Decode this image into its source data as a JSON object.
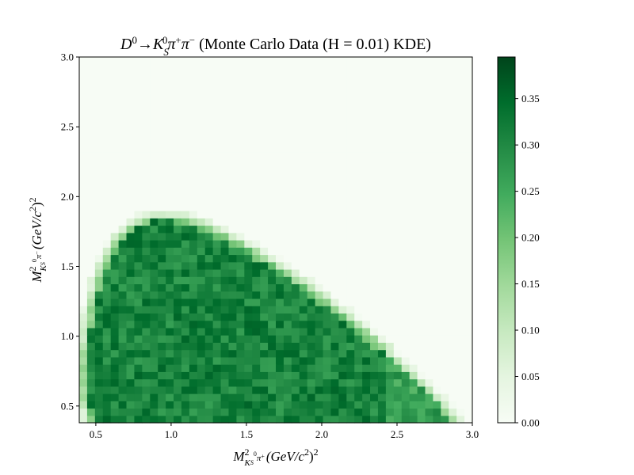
{
  "chart_data": {
    "type": "heatmap",
    "title_parts": {
      "math_left": "D",
      "sup_0a": "0",
      "arrow": "→",
      "k": "K",
      "sub_s_title": "S",
      "sup_0b": "0",
      "pi_plus": "π",
      "sup_plus": "+",
      "pi_minus": "π",
      "sup_minus": "−",
      "plain": " (Monte Carlo Data (H = 0.01) KDE)"
    },
    "xlabel_parts": {
      "m": "M",
      "sup2": "2",
      "sub": "K",
      "sub_s": "S",
      "sub_0": "0",
      "sub_pi": "π",
      "sub_sign": "+",
      "unit": "(GeV/c",
      "unit_sup": "2",
      "unit_close": ")",
      "unit_sup2": "2"
    },
    "ylabel_parts": {
      "m": "M",
      "sup2": "2",
      "sub": "K",
      "sub_s": "S",
      "sub_0": "0",
      "sub_pi": "π",
      "sub_sign": "−",
      "unit": "(GeV/c",
      "unit_sup": "2",
      "unit_close": ")",
      "unit_sup2": "2"
    },
    "xlim": [
      0.39,
      3.0
    ],
    "ylim": [
      0.38,
      3.0
    ],
    "x_ticks": [
      0.5,
      1.0,
      1.5,
      2.0,
      2.5,
      3.0
    ],
    "x_tick_labels": [
      "0.5",
      "1.0",
      "1.5",
      "2.0",
      "2.5",
      "3.0"
    ],
    "y_ticks": [
      0.5,
      1.0,
      1.5,
      2.0,
      2.5,
      3.0
    ],
    "y_tick_labels": [
      "0.5",
      "1.0",
      "1.5",
      "2.0",
      "2.5",
      "3.0"
    ],
    "colorbar": {
      "min": 0.0,
      "max": 0.395,
      "ticks": [
        0.0,
        0.05,
        0.1,
        0.15,
        0.2,
        0.25,
        0.3,
        0.35
      ],
      "tick_labels": [
        "0.00",
        "0.05",
        "0.10",
        "0.15",
        "0.20",
        "0.25",
        "0.30",
        "0.35"
      ],
      "colormap": "Greens"
    },
    "grid": false,
    "bins": 50,
    "background_value": 0.0,
    "typical_value_inside_region": 0.31,
    "region_description": "Dalitz plot allowed region: upper-left to lower-right elongated band, density ~0.25–0.38 inside, near 0 outside",
    "colors": {
      "low": "#f7fcf5",
      "mid": "#74c476",
      "high": "#00441b"
    }
  }
}
